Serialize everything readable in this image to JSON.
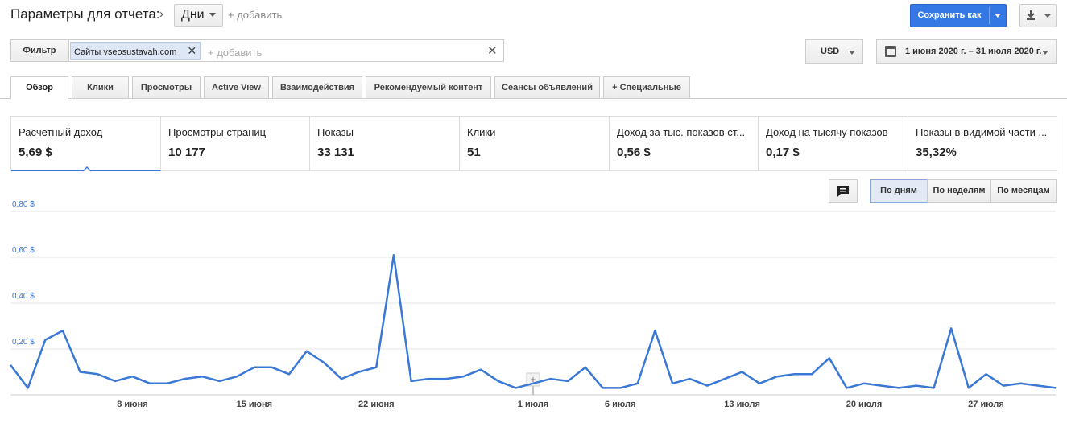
{
  "header": {
    "title": "Параметры для отчета:",
    "dimension": "Дни",
    "add_label": "+ добавить",
    "save_label": "Сохранить как"
  },
  "filter": {
    "button_label": "Фильтр",
    "chip_prefix": "Сайты",
    "chip_value": "vseosustavah.com",
    "placeholder": "+ добавить"
  },
  "currency": "USD",
  "date_range": "1 июня 2020 г. – 31 июля 2020 г.",
  "tabs": [
    {
      "label": "Обзор",
      "active": true
    },
    {
      "label": "Клики"
    },
    {
      "label": "Просмотры"
    },
    {
      "label": "Active View"
    },
    {
      "label": "Взаимодействия"
    },
    {
      "label": "Рекомендуемый контент"
    },
    {
      "label": "Сеансы объявлений"
    },
    {
      "label": "+  Специальные"
    }
  ],
  "metrics": [
    {
      "name": "Расчетный доход",
      "value": "5,69 $"
    },
    {
      "name": "Просмотры страниц",
      "value": "10 177"
    },
    {
      "name": "Показы",
      "value": "33 131"
    },
    {
      "name": "Клики",
      "value": "51"
    },
    {
      "name": "Доход за тыс. показов ст...",
      "value": "0,56 $"
    },
    {
      "name": "Доход на тысячу показов",
      "value": "0,17 $"
    },
    {
      "name": "Показы в видимой части ...",
      "value": "35,32%"
    }
  ],
  "granularity": {
    "days": "По дням",
    "weeks": "По неделям",
    "months": "По месяцам",
    "selected": "days"
  },
  "colors": {
    "accent": "#3a78d6",
    "primary_button": "#3478e5",
    "line": "#3a78d6"
  },
  "chart_data": {
    "type": "line",
    "ylim": [
      0,
      0.8
    ],
    "yticks": [
      "0,20 $",
      "0,40 $",
      "0,60 $",
      "0,80 $"
    ],
    "ytick_values": [
      0.2,
      0.4,
      0.6,
      0.8
    ],
    "xtick_labels": [
      "8 июня",
      "15 июня",
      "22 июня",
      "1 июля",
      "6 июля",
      "13 июля",
      "20 июля",
      "27 июля"
    ],
    "xtick_days": [
      8,
      15,
      22,
      31,
      36,
      43,
      50,
      57
    ],
    "series": [
      {
        "values": [
          0.13,
          0.03,
          0.24,
          0.28,
          0.1,
          0.09,
          0.06,
          0.08,
          0.05,
          0.05,
          0.07,
          0.08,
          0.06,
          0.08,
          0.12,
          0.12,
          0.09,
          0.19,
          0.14,
          0.07,
          0.1,
          0.12,
          0.61,
          0.06,
          0.07,
          0.07,
          0.08,
          0.11,
          0.06,
          0.03,
          0.05,
          0.07,
          0.06,
          0.12,
          0.03,
          0.03,
          0.05,
          0.28,
          0.05,
          0.07,
          0.04,
          0.07,
          0.1,
          0.05,
          0.08,
          0.09,
          0.09,
          0.16,
          0.03,
          0.05,
          0.04,
          0.03,
          0.04,
          0.03,
          0.29,
          0.03,
          0.09,
          0.04,
          0.05,
          0.04,
          0.03
        ]
      }
    ],
    "grid": true
  }
}
